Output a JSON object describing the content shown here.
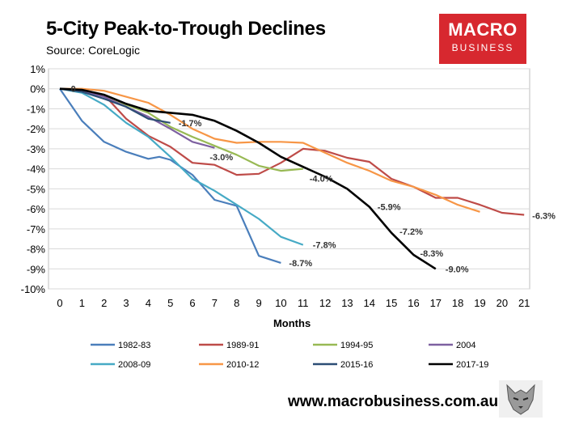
{
  "header": {
    "title": "5-City Peak-to-Trough Declines",
    "subtitle": "Source: CoreLogic"
  },
  "logo": {
    "line1": "MACRO",
    "line2": "BUSINESS"
  },
  "footer": {
    "url": "www.macrobusiness.com.au"
  },
  "chart_data": {
    "type": "line",
    "title": "5-City Peak-to-Trough Declines",
    "xlabel": "Months",
    "ylabel": "",
    "xlim": [
      0,
      21
    ],
    "ylim": [
      -10,
      1
    ],
    "x_ticks": [
      "0",
      "1",
      "2",
      "3",
      "4",
      "5",
      "6",
      "7",
      "8",
      "9",
      "10",
      "11",
      "12",
      "13",
      "14",
      "15",
      "16",
      "17",
      "18",
      "19",
      "20",
      "21"
    ],
    "y_ticks": [
      "1%",
      "0%",
      "-1%",
      "-2%",
      "-3%",
      "-4%",
      "-5%",
      "-6%",
      "-7%",
      "-8%",
      "-9%",
      "-10%"
    ],
    "grid": true,
    "legend_position": "bottom",
    "series": [
      {
        "name": "1982-83",
        "color": "#4a7ebb",
        "x": [
          0,
          1,
          2,
          3,
          4,
          4.5,
          5,
          6,
          7,
          8,
          9,
          10
        ],
        "values": [
          0,
          -1.6,
          -2.65,
          -3.15,
          -3.5,
          -3.4,
          -3.55,
          -4.3,
          -5.55,
          -5.85,
          -8.35,
          -8.7
        ]
      },
      {
        "name": "1989-91",
        "color": "#be4b48",
        "x": [
          0,
          1,
          2,
          3,
          4,
          5,
          6,
          7,
          8,
          9,
          10,
          11,
          12,
          13,
          14,
          15,
          16,
          17,
          18,
          19,
          20,
          21
        ],
        "values": [
          0,
          -0.1,
          -0.3,
          -1.5,
          -2.35,
          -2.9,
          -3.7,
          -3.8,
          -4.3,
          -4.25,
          -3.7,
          -3.0,
          -3.1,
          -3.45,
          -3.65,
          -4.5,
          -4.9,
          -5.45,
          -5.45,
          -5.8,
          -6.2,
          -6.3
        ]
      },
      {
        "name": "1994-95",
        "color": "#98b954",
        "x": [
          0,
          1,
          2,
          3,
          4,
          5,
          6,
          7,
          8,
          9,
          10,
          11
        ],
        "values": [
          0,
          -0.1,
          -0.3,
          -0.8,
          -1.2,
          -1.9,
          -2.4,
          -2.85,
          -3.3,
          -3.85,
          -4.1,
          -4.0
        ]
      },
      {
        "name": "2004",
        "color": "#7d60a0",
        "x": [
          0,
          1,
          2,
          3,
          4,
          5,
          6,
          7
        ],
        "values": [
          0,
          -0.1,
          -0.4,
          -0.9,
          -1.4,
          -2.0,
          -2.65,
          -2.95
        ]
      },
      {
        "name": "2008-09",
        "color": "#46aac5",
        "x": [
          0,
          1,
          2,
          3,
          4,
          5,
          6,
          7,
          8,
          9,
          10,
          11
        ],
        "values": [
          0,
          -0.2,
          -0.8,
          -1.7,
          -2.4,
          -3.4,
          -4.5,
          -5.1,
          -5.8,
          -6.5,
          -7.4,
          -7.8
        ]
      },
      {
        "name": "2010-12",
        "color": "#f79646",
        "x": [
          0,
          1,
          2,
          3,
          4,
          5,
          6,
          7,
          8,
          9,
          10,
          11,
          12,
          13,
          14,
          15,
          16,
          17,
          18,
          19
        ],
        "values": [
          0,
          0,
          -0.1,
          -0.4,
          -0.7,
          -1.3,
          -2.0,
          -2.5,
          -2.7,
          -2.65,
          -2.65,
          -2.7,
          -3.2,
          -3.7,
          -4.1,
          -4.6,
          -4.9,
          -5.3,
          -5.8,
          -6.15
        ]
      },
      {
        "name": "2015-16",
        "color": "#2c4d75",
        "x": [
          0,
          1,
          2,
          3,
          4,
          5
        ],
        "values": [
          0,
          -0.15,
          -0.5,
          -0.9,
          -1.5,
          -1.7
        ]
      },
      {
        "name": "2017-19",
        "color": "#000000",
        "x": [
          0,
          1,
          2,
          3,
          4,
          5,
          6,
          7,
          8,
          9,
          10,
          11,
          12,
          13,
          14,
          15,
          16,
          17
        ],
        "values": [
          0,
          -0.05,
          -0.3,
          -0.75,
          -1.1,
          -1.2,
          -1.3,
          -1.6,
          -2.1,
          -2.7,
          -3.4,
          -3.9,
          -4.4,
          -5.0,
          -5.9,
          -7.2,
          -8.3,
          -9.0
        ]
      }
    ],
    "annotations": [
      {
        "text": "-8.7%",
        "x": 10,
        "y": -8.7
      },
      {
        "text": "-6.3%",
        "x": 21,
        "y": -6.3
      },
      {
        "text": "-4.0%",
        "x": 11,
        "y": -4.0
      },
      {
        "text": "-3.0%",
        "x": 7,
        "y": -3.0
      },
      {
        "text": "-7.8%",
        "x": 11,
        "y": -7.8
      },
      {
        "text": "-1.7%",
        "x": 5,
        "y": -1.7
      },
      {
        "text": "-5.9%",
        "x": 14,
        "y": -5.9
      },
      {
        "text": "-7.2%",
        "x": 15,
        "y": -7.2
      },
      {
        "text": "-8.3%",
        "x": 16,
        "y": -8.3
      },
      {
        "text": "-9.0%",
        "x": 17,
        "y": -9.0
      },
      {
        "text": "0",
        "x": 0.5,
        "y": 0
      }
    ]
  }
}
